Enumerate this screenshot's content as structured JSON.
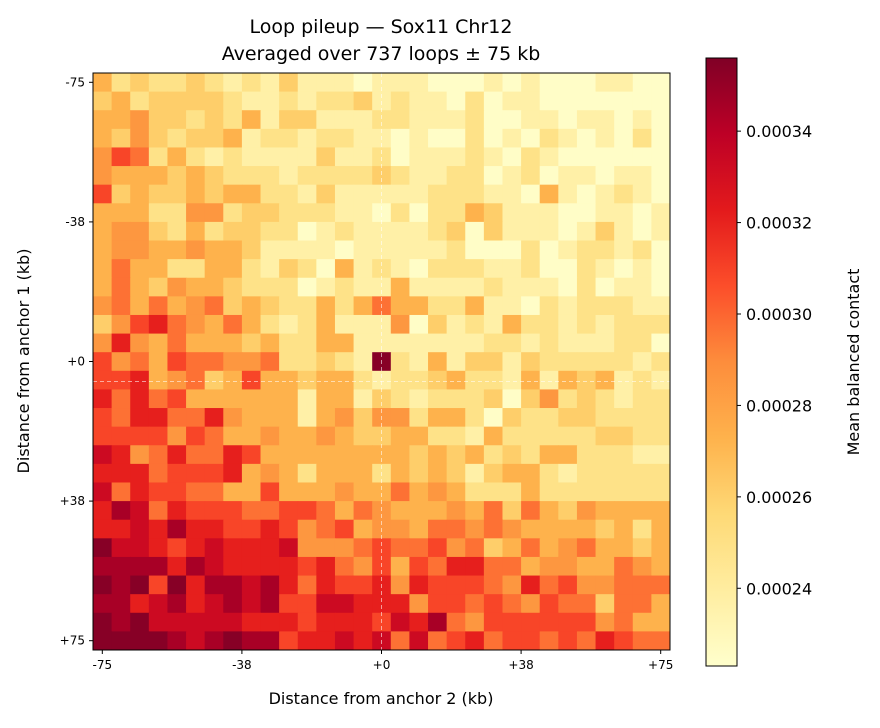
{
  "chart_data": {
    "type": "heatmap",
    "title": "Loop pileup — Sox11 Chr12",
    "subtitle": "Averaged over 737 loops ± 75 kb",
    "xlabel": "Distance from anchor 2 (kb)",
    "ylabel": "Distance from anchor 1 (kb)",
    "x_range_kb": [
      -75,
      75
    ],
    "y_range_kb": [
      -75,
      75
    ],
    "y_direction": "top-to-bottom",
    "bin_size_kb": 5,
    "x_ticks": [
      {
        "value": -75,
        "label": "-75"
      },
      {
        "value": -37.5,
        "label": "-38"
      },
      {
        "value": 0,
        "label": "+0"
      },
      {
        "value": 37.5,
        "label": "+38"
      },
      {
        "value": 75,
        "label": "+75"
      }
    ],
    "y_ticks": [
      {
        "value": -75,
        "label": "-75"
      },
      {
        "value": -37.5,
        "label": "-38"
      },
      {
        "value": 0,
        "label": "+0"
      },
      {
        "value": 37.5,
        "label": "+38"
      },
      {
        "value": 75,
        "label": "+75"
      }
    ],
    "center_crosshair": true,
    "grid": false,
    "colormap": "YlOrRd",
    "colormap_stops": [
      "#ffffcc",
      "#ffeda0",
      "#fed976",
      "#feb24c",
      "#fd8d3c",
      "#fc4e2a",
      "#e31a1c",
      "#bd0026",
      "#800026"
    ],
    "colorbar": {
      "label": "Mean balanced contact",
      "range": [
        0.000223,
        0.000356
      ],
      "ticks": [
        {
          "value": 0.00024,
          "label": "0.00024"
        },
        {
          "value": 0.00026,
          "label": "0.00026"
        },
        {
          "value": 0.00028,
          "label": "0.00028"
        },
        {
          "value": 0.0003,
          "label": "0.00030"
        },
        {
          "value": 0.00032,
          "label": "0.00032"
        },
        {
          "value": 0.00034,
          "label": "0.00034"
        }
      ],
      "placement": "right"
    },
    "values": [
      [
        0.000273,
        0.000249,
        0.000261,
        0.000249,
        0.000249,
        0.000261,
        0.000249,
        0.000237,
        0.000249,
        0.000237,
        0.000261,
        0.000237,
        0.000237,
        0.000237,
        0.000225,
        0.000237,
        0.000237,
        0.000237,
        0.000225,
        0.000225,
        0.000225,
        0.000237,
        0.000225,
        0.000237,
        0.000225,
        0.000225,
        0.000225,
        0.000237,
        0.000237,
        0.000225,
        0.000225
      ],
      [
        0.000261,
        0.000273,
        0.000249,
        0.000261,
        0.000261,
        0.000261,
        0.000261,
        0.000249,
        0.000237,
        0.000237,
        0.000249,
        0.000237,
        0.000249,
        0.000249,
        0.000261,
        0.000237,
        0.000249,
        0.000237,
        0.000237,
        0.000225,
        0.000249,
        0.000225,
        0.000237,
        0.000237,
        0.000225,
        0.000225,
        0.000225,
        0.000225,
        0.000225,
        0.000225,
        0.000225
      ],
      [
        0.000273,
        0.000273,
        0.000285,
        0.000261,
        0.000261,
        0.000249,
        0.000261,
        0.000249,
        0.000273,
        0.000237,
        0.000261,
        0.000261,
        0.000237,
        0.000237,
        0.000237,
        0.000249,
        0.000249,
        0.000237,
        0.000237,
        0.000237,
        0.000249,
        0.000225,
        0.000225,
        0.000237,
        0.000237,
        0.000225,
        0.000237,
        0.000237,
        0.000225,
        0.000237,
        0.000225
      ],
      [
        0.000273,
        0.000261,
        0.000285,
        0.000261,
        0.000249,
        0.000261,
        0.000261,
        0.000273,
        0.000237,
        0.000249,
        0.000249,
        0.000237,
        0.000249,
        0.000249,
        0.000237,
        0.000237,
        0.000225,
        0.000237,
        0.000225,
        0.000225,
        0.000249,
        0.000225,
        0.000237,
        0.000225,
        0.000249,
        0.000237,
        0.000225,
        0.000237,
        0.000225,
        0.000249,
        0.000225
      ],
      [
        0.000285,
        0.000309,
        0.000297,
        0.000249,
        0.000273,
        0.000249,
        0.000237,
        0.000249,
        0.000237,
        0.000237,
        0.000237,
        0.000237,
        0.000261,
        0.000237,
        0.000237,
        0.000249,
        0.000225,
        0.000237,
        0.000237,
        0.000237,
        0.000249,
        0.000237,
        0.000225,
        0.000249,
        0.000237,
        0.000225,
        0.000225,
        0.000225,
        0.000225,
        0.000225,
        0.000225
      ],
      [
        0.000285,
        0.000273,
        0.000273,
        0.000273,
        0.000261,
        0.000273,
        0.000261,
        0.000249,
        0.000249,
        0.000249,
        0.000237,
        0.000249,
        0.000249,
        0.000249,
        0.000249,
        0.000261,
        0.000249,
        0.000237,
        0.000237,
        0.000249,
        0.000249,
        0.000225,
        0.000237,
        0.000249,
        0.000225,
        0.000237,
        0.000237,
        0.000225,
        0.000237,
        0.000237,
        0.000225
      ],
      [
        0.000309,
        0.000261,
        0.000273,
        0.000261,
        0.000261,
        0.000273,
        0.000261,
        0.000273,
        0.000273,
        0.000249,
        0.000249,
        0.000237,
        0.000261,
        0.000237,
        0.000237,
        0.000237,
        0.000237,
        0.000237,
        0.000249,
        0.000249,
        0.000249,
        0.000237,
        0.000237,
        0.000225,
        0.000273,
        0.000237,
        0.000225,
        0.000237,
        0.000249,
        0.000237,
        0.000225
      ],
      [
        0.000273,
        0.000273,
        0.000273,
        0.000249,
        0.000249,
        0.000285,
        0.000285,
        0.000249,
        0.000261,
        0.000261,
        0.000249,
        0.000249,
        0.000249,
        0.000237,
        0.000237,
        0.000225,
        0.000249,
        0.000225,
        0.000249,
        0.000249,
        0.000273,
        0.000261,
        0.000237,
        0.000237,
        0.000237,
        0.000225,
        0.000225,
        0.000237,
        0.000237,
        0.000225,
        0.000237
      ],
      [
        0.000273,
        0.000285,
        0.000285,
        0.000261,
        0.000249,
        0.000273,
        0.000249,
        0.000261,
        0.000261,
        0.000249,
        0.000249,
        0.000225,
        0.000237,
        0.000249,
        0.000237,
        0.000237,
        0.000237,
        0.000237,
        0.000249,
        0.000261,
        0.000225,
        0.000261,
        0.000237,
        0.000237,
        0.000237,
        0.000225,
        0.000237,
        0.000261,
        0.000237,
        0.000225,
        0.000237
      ],
      [
        0.000273,
        0.000285,
        0.000285,
        0.000273,
        0.000273,
        0.000285,
        0.000273,
        0.000273,
        0.000261,
        0.000237,
        0.000237,
        0.000237,
        0.000237,
        0.000225,
        0.000237,
        0.000237,
        0.000237,
        0.000237,
        0.000237,
        0.000249,
        0.000225,
        0.000225,
        0.000225,
        0.000249,
        0.000225,
        0.000237,
        0.000249,
        0.000249,
        0.000237,
        0.000249,
        0.000225
      ],
      [
        0.000273,
        0.000297,
        0.000273,
        0.000273,
        0.000249,
        0.000249,
        0.000273,
        0.000273,
        0.000249,
        0.000237,
        0.000261,
        0.000249,
        0.000225,
        0.000273,
        0.000237,
        0.000249,
        0.000237,
        0.000225,
        0.000249,
        0.000249,
        0.000249,
        0.000237,
        0.000237,
        0.000249,
        0.000225,
        0.000225,
        0.000249,
        0.000237,
        0.000225,
        0.000237,
        0.000225
      ],
      [
        0.000273,
        0.000297,
        0.000273,
        0.000261,
        0.000285,
        0.000273,
        0.000273,
        0.000261,
        0.000249,
        0.000249,
        0.000249,
        0.000225,
        0.000237,
        0.000249,
        0.000237,
        0.000237,
        0.000273,
        0.000237,
        0.000237,
        0.000237,
        0.000237,
        0.000249,
        0.000237,
        0.000237,
        0.000237,
        0.000225,
        0.000249,
        0.000225,
        0.000237,
        0.000237,
        0.000225
      ],
      [
        0.000285,
        0.000297,
        0.000273,
        0.000297,
        0.000273,
        0.000285,
        0.000297,
        0.000261,
        0.000273,
        0.000261,
        0.000249,
        0.000249,
        0.000273,
        0.000249,
        0.000273,
        0.000297,
        0.000273,
        0.000273,
        0.000249,
        0.000249,
        0.000273,
        0.000237,
        0.000237,
        0.000225,
        0.000249,
        0.000237,
        0.000249,
        0.000249,
        0.000249,
        0.000237,
        0.000237
      ],
      [
        0.000261,
        0.000285,
        0.000309,
        0.000321,
        0.000297,
        0.000285,
        0.000273,
        0.000297,
        0.000273,
        0.000249,
        0.000237,
        0.000249,
        0.000273,
        0.000237,
        0.000237,
        0.000237,
        0.000285,
        0.000225,
        0.000261,
        0.000237,
        0.000249,
        0.000237,
        0.000273,
        0.000249,
        0.000249,
        0.000237,
        0.000249,
        0.000237,
        0.000249,
        0.000249,
        0.000249
      ],
      [
        0.000285,
        0.000321,
        0.000285,
        0.000273,
        0.000297,
        0.000273,
        0.000273,
        0.000273,
        0.000261,
        0.000273,
        0.000249,
        0.000249,
        0.000273,
        0.000273,
        0.000237,
        0.000237,
        0.000237,
        0.000237,
        0.000237,
        0.000237,
        0.000237,
        0.000249,
        0.000249,
        0.000237,
        0.000249,
        0.000237,
        0.000237,
        0.000237,
        0.000249,
        0.000249,
        0.000225
      ],
      [
        0.000309,
        0.000285,
        0.000297,
        0.000273,
        0.000309,
        0.000297,
        0.000297,
        0.000285,
        0.000285,
        0.000297,
        0.000249,
        0.000249,
        0.000261,
        0.000249,
        0.000237,
        0.000354,
        0.000249,
        0.000237,
        0.000273,
        0.000237,
        0.000261,
        0.000261,
        0.000237,
        0.000261,
        0.000249,
        0.000249,
        0.000249,
        0.000249,
        0.000249,
        0.000237,
        0.000249
      ],
      [
        0.000309,
        0.000309,
        0.000321,
        0.000273,
        0.000285,
        0.000297,
        0.000261,
        0.000273,
        0.000309,
        0.000273,
        0.000273,
        0.000261,
        0.000273,
        0.000273,
        0.000249,
        0.000237,
        0.000249,
        0.000249,
        0.000261,
        0.000273,
        0.000249,
        0.000249,
        0.000237,
        0.000273,
        0.000237,
        0.000273,
        0.000261,
        0.000273,
        0.000237,
        0.000249,
        0.000237
      ],
      [
        0.000321,
        0.000297,
        0.000321,
        0.000297,
        0.000309,
        0.000273,
        0.000273,
        0.000273,
        0.000273,
        0.000273,
        0.000273,
        0.000237,
        0.000273,
        0.000273,
        0.000237,
        0.000261,
        0.000249,
        0.000237,
        0.000249,
        0.000249,
        0.000249,
        0.000261,
        0.000225,
        0.000261,
        0.000285,
        0.000249,
        0.000261,
        0.000249,
        0.000237,
        0.000249,
        0.000249
      ],
      [
        0.000309,
        0.000297,
        0.000321,
        0.000321,
        0.000297,
        0.000297,
        0.000321,
        0.000285,
        0.000273,
        0.000273,
        0.000273,
        0.000237,
        0.000273,
        0.000285,
        0.000261,
        0.000285,
        0.000285,
        0.000249,
        0.000273,
        0.000273,
        0.000249,
        0.000225,
        0.000261,
        0.000249,
        0.000249,
        0.000261,
        0.000261,
        0.000249,
        0.000249,
        0.000249,
        0.000249
      ],
      [
        0.000309,
        0.000309,
        0.000309,
        0.000309,
        0.000285,
        0.000309,
        0.000297,
        0.000273,
        0.000273,
        0.000285,
        0.000273,
        0.000273,
        0.000285,
        0.000273,
        0.000261,
        0.000261,
        0.000273,
        0.000273,
        0.000249,
        0.000249,
        0.000237,
        0.000273,
        0.000249,
        0.000249,
        0.000249,
        0.000249,
        0.000249,
        0.000261,
        0.000261,
        0.000249,
        0.000249
      ],
      [
        0.000333,
        0.000321,
        0.000285,
        0.000297,
        0.000321,
        0.000297,
        0.000297,
        0.000321,
        0.000309,
        0.000273,
        0.000273,
        0.000273,
        0.000273,
        0.000273,
        0.000273,
        0.000273,
        0.000273,
        0.000261,
        0.000273,
        0.000261,
        0.000273,
        0.000249,
        0.000261,
        0.000249,
        0.000273,
        0.000273,
        0.000249,
        0.000249,
        0.000249,
        0.000237,
        0.000237
      ],
      [
        0.000321,
        0.000321,
        0.000321,
        0.000297,
        0.000309,
        0.000309,
        0.000309,
        0.000321,
        0.000273,
        0.000285,
        0.000273,
        0.000249,
        0.000273,
        0.000273,
        0.000273,
        0.000249,
        0.000273,
        0.000261,
        0.000273,
        0.000261,
        0.000237,
        0.000261,
        0.000273,
        0.000273,
        0.000249,
        0.000237,
        0.000249,
        0.000249,
        0.000249,
        0.000249,
        0.000249
      ],
      [
        0.000333,
        0.000297,
        0.000321,
        0.000309,
        0.000309,
        0.000297,
        0.000297,
        0.000273,
        0.000273,
        0.000309,
        0.000273,
        0.000273,
        0.000273,
        0.000285,
        0.000273,
        0.000273,
        0.000297,
        0.000273,
        0.000285,
        0.000273,
        0.000249,
        0.000249,
        0.000249,
        0.000273,
        0.000249,
        0.000249,
        0.000249,
        0.000249,
        0.000249,
        0.000249,
        0.000249
      ],
      [
        0.000321,
        0.000345,
        0.000333,
        0.000297,
        0.000321,
        0.000309,
        0.000309,
        0.000309,
        0.000297,
        0.000297,
        0.000309,
        0.000309,
        0.000297,
        0.000273,
        0.000297,
        0.000285,
        0.000273,
        0.000273,
        0.000273,
        0.000285,
        0.000273,
        0.000297,
        0.000261,
        0.000297,
        0.000273,
        0.000261,
        0.000285,
        0.000273,
        0.000273,
        0.000273,
        0.000273
      ],
      [
        0.000321,
        0.000321,
        0.000333,
        0.000321,
        0.000345,
        0.000321,
        0.000321,
        0.000309,
        0.000309,
        0.000321,
        0.000309,
        0.000285,
        0.000297,
        0.000309,
        0.000273,
        0.000285,
        0.000285,
        0.000273,
        0.000297,
        0.000297,
        0.000285,
        0.000297,
        0.000285,
        0.000273,
        0.000273,
        0.000273,
        0.000273,
        0.000261,
        0.000273,
        0.000249,
        0.000273
      ],
      [
        0.000354,
        0.000333,
        0.000333,
        0.000321,
        0.000309,
        0.000321,
        0.000333,
        0.000321,
        0.000321,
        0.000321,
        0.000333,
        0.000285,
        0.000285,
        0.000285,
        0.000297,
        0.000309,
        0.000297,
        0.000297,
        0.000309,
        0.000285,
        0.000297,
        0.000261,
        0.000273,
        0.000297,
        0.000273,
        0.000285,
        0.000297,
        0.000273,
        0.000273,
        0.000261,
        0.000273
      ],
      [
        0.000345,
        0.000345,
        0.000345,
        0.000345,
        0.000321,
        0.000345,
        0.000333,
        0.000321,
        0.000321,
        0.000321,
        0.000321,
        0.000309,
        0.000321,
        0.000297,
        0.000285,
        0.000309,
        0.000273,
        0.000309,
        0.000297,
        0.000321,
        0.000321,
        0.000297,
        0.000297,
        0.000273,
        0.000285,
        0.000285,
        0.000273,
        0.000273,
        0.000297,
        0.000285,
        0.000273
      ],
      [
        0.000354,
        0.000345,
        0.000354,
        0.000309,
        0.000354,
        0.000321,
        0.000345,
        0.000345,
        0.000333,
        0.000345,
        0.000321,
        0.000297,
        0.000321,
        0.000309,
        0.000309,
        0.000321,
        0.000285,
        0.000321,
        0.000309,
        0.000309,
        0.000309,
        0.000297,
        0.000285,
        0.000321,
        0.000297,
        0.000309,
        0.000285,
        0.000285,
        0.000297,
        0.000297,
        0.000297
      ],
      [
        0.000345,
        0.000345,
        0.000321,
        0.000333,
        0.000345,
        0.000321,
        0.000333,
        0.000345,
        0.000333,
        0.000345,
        0.000309,
        0.000309,
        0.000333,
        0.000333,
        0.000321,
        0.000321,
        0.000321,
        0.000285,
        0.000309,
        0.000309,
        0.000297,
        0.000309,
        0.000297,
        0.000285,
        0.000309,
        0.000297,
        0.000297,
        0.000261,
        0.000297,
        0.000297,
        0.000273
      ],
      [
        0.000354,
        0.000345,
        0.000354,
        0.000333,
        0.000333,
        0.000333,
        0.000333,
        0.000333,
        0.000321,
        0.000321,
        0.000321,
        0.000309,
        0.000321,
        0.000321,
        0.000321,
        0.000309,
        0.000333,
        0.000321,
        0.000345,
        0.000297,
        0.000285,
        0.000309,
        0.000309,
        0.000309,
        0.000309,
        0.000309,
        0.000309,
        0.000285,
        0.000297,
        0.000273,
        0.000273
      ],
      [
        0.000354,
        0.000354,
        0.000354,
        0.000354,
        0.000345,
        0.000333,
        0.000345,
        0.000354,
        0.000345,
        0.000345,
        0.000309,
        0.000321,
        0.000321,
        0.000333,
        0.000321,
        0.000333,
        0.000297,
        0.000333,
        0.000297,
        0.000309,
        0.000321,
        0.000297,
        0.000309,
        0.000309,
        0.000297,
        0.000309,
        0.000297,
        0.000321,
        0.000309,
        0.000297,
        0.000297
      ]
    ]
  }
}
